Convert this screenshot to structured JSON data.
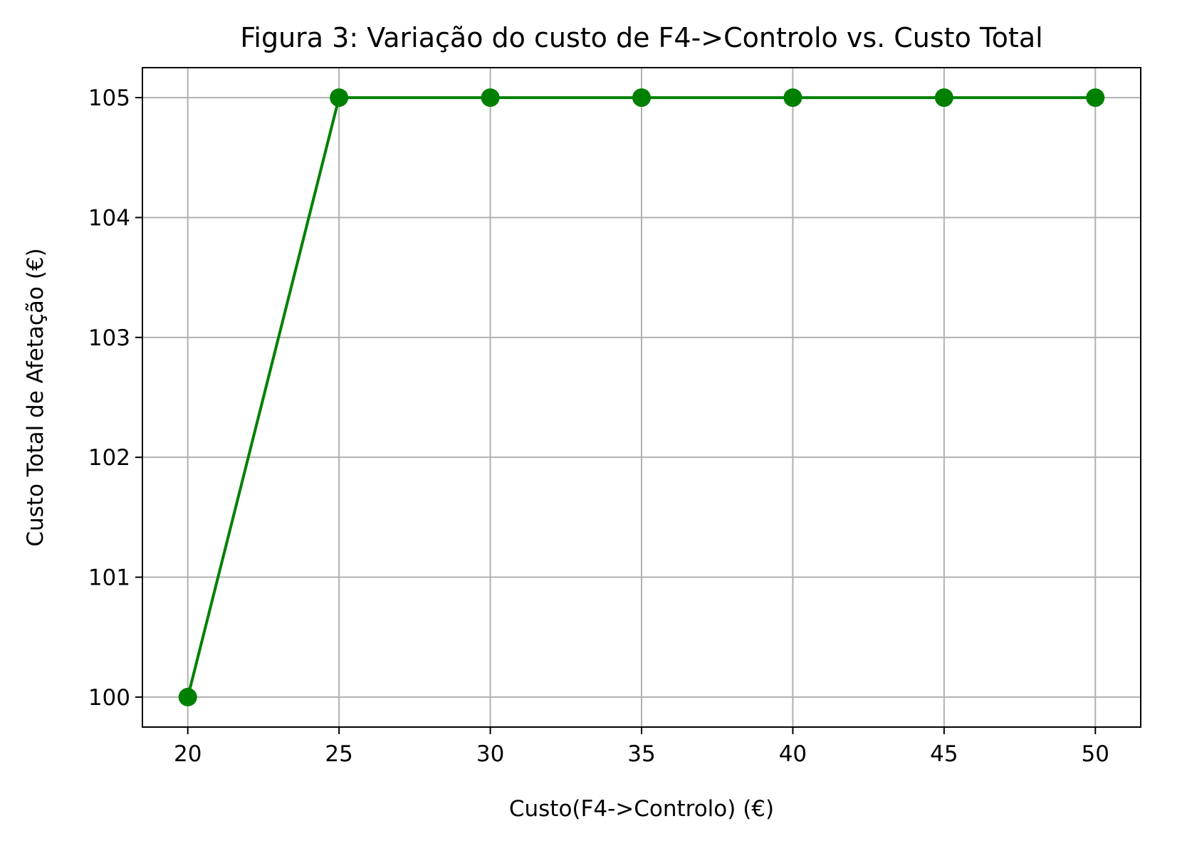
{
  "chart_data": {
    "type": "line",
    "title": "Figura 3: Variação do custo de F4->Controlo vs. Custo Total",
    "xlabel": "Custo(F4->Controlo) (€)",
    "ylabel": "Custo Total de Afetação (€)",
    "x": [
      20,
      25,
      30,
      35,
      40,
      45,
      50
    ],
    "series": [
      {
        "values": [
          100,
          105,
          105,
          105,
          105,
          105,
          105
        ]
      }
    ],
    "xlim": [
      18.5,
      51.5
    ],
    "ylim": [
      99.75,
      105.25
    ],
    "xticks": [
      20,
      25,
      30,
      35,
      40,
      45,
      50
    ],
    "yticks": [
      100,
      101,
      102,
      103,
      104,
      105
    ],
    "grid": true,
    "marker": "circle",
    "colors": {
      "line": "#008000",
      "grid": "#b0b0b0",
      "axes": "#000000"
    }
  }
}
